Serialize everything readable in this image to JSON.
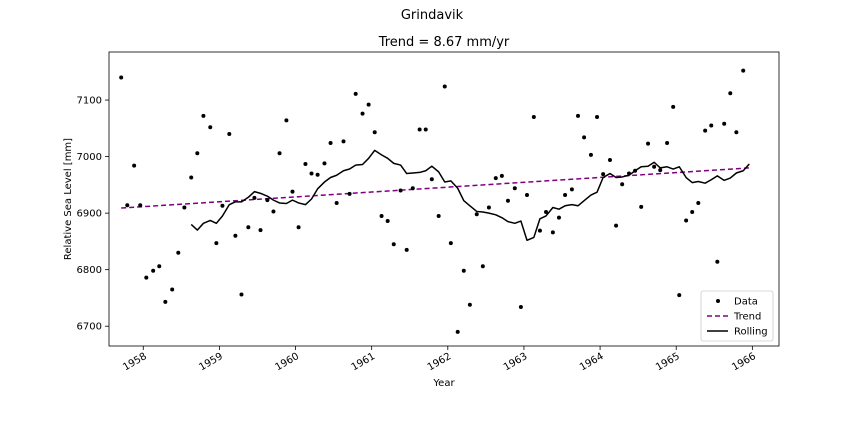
{
  "chart_data": {
    "type": "line",
    "suptitle": "Grindavik",
    "title": "Trend = 8.67 mm/yr",
    "xlabel": "Year",
    "ylabel": "Relative Sea Level [mm]",
    "xlim": [
      1957.55,
      1966.35
    ],
    "ylim": [
      6665,
      7185
    ],
    "xticks": [
      1958,
      1959,
      1960,
      1961,
      1962,
      1963,
      1964,
      1965,
      1966
    ],
    "yticks": [
      6700,
      6800,
      6900,
      7000,
      7100
    ],
    "grid": false,
    "legend": {
      "placement": "lower right",
      "entries": [
        "Data",
        "Trend",
        "Rolling"
      ]
    },
    "colors": {
      "data": "#000000",
      "trend": "#800080",
      "rolling": "#000000"
    },
    "series": [
      {
        "name": "Data",
        "style": "points",
        "x": [
          1957.71,
          1957.79,
          1957.88,
          1957.96,
          1958.04,
          1958.13,
          1958.21,
          1958.29,
          1958.38,
          1958.46,
          1958.54,
          1958.63,
          1958.71,
          1958.79,
          1958.88,
          1958.96,
          1959.04,
          1959.13,
          1959.21,
          1959.29,
          1959.38,
          1959.46,
          1959.54,
          1959.63,
          1959.71,
          1959.79,
          1959.88,
          1959.96,
          1960.04,
          1960.13,
          1960.21,
          1960.29,
          1960.38,
          1960.46,
          1960.54,
          1960.63,
          1960.71,
          1960.79,
          1960.88,
          1960.96,
          1961.04,
          1961.13,
          1961.21,
          1961.29,
          1961.38,
          1961.46,
          1961.54,
          1961.63,
          1961.71,
          1961.79,
          1961.88,
          1961.96,
          1962.04,
          1962.13,
          1962.21,
          1962.29,
          1962.38,
          1962.46,
          1962.54,
          1962.63,
          1962.71,
          1962.79,
          1962.88,
          1962.96,
          1963.04,
          1963.13,
          1963.21,
          1963.29,
          1963.38,
          1963.46,
          1963.54,
          1963.63,
          1963.71,
          1963.79,
          1963.88,
          1963.96,
          1964.04,
          1964.13,
          1964.21,
          1964.29,
          1964.38,
          1964.46,
          1964.54,
          1964.63,
          1964.71,
          1964.79,
          1964.88,
          1964.96,
          1965.04,
          1965.13,
          1965.21,
          1965.29,
          1965.38,
          1965.46,
          1965.54,
          1965.63,
          1965.71,
          1965.79,
          1965.88
        ],
        "y": [
          7140,
          6914,
          6984,
          6914,
          6786,
          6798,
          6806,
          6743,
          6765,
          6830,
          6910,
          6963,
          7006,
          7072,
          7052,
          6847,
          6913,
          7040,
          6860,
          6756,
          6875,
          6927,
          6870,
          6923,
          6903,
          7006,
          7064,
          6938,
          6875,
          6987,
          6970,
          6968,
          6988,
          7024,
          6918,
          7027,
          6934,
          7111,
          7076,
          7092,
          7043,
          6895,
          6886,
          6845,
          6940,
          6835,
          6944,
          7048,
          7048,
          6960,
          6895,
          7124,
          6847,
          6690,
          6798,
          6738,
          6898,
          6806,
          6910,
          6962,
          6966,
          6922,
          6944,
          6734,
          6932,
          7070,
          6869,
          6902,
          6866,
          6892,
          6932,
          6942,
          7072,
          7034,
          7003,
          7070,
          6969,
          6994,
          6878,
          6951,
          6970,
          6975,
          6911,
          7023,
          6982,
          6976,
          7024,
          7088,
          6755,
          6887,
          6902,
          6918,
          7046,
          7055,
          6814,
          7058,
          7112,
          7043,
          7152
        ]
      },
      {
        "name": "Trend",
        "style": "dashed",
        "x": [
          1957.71,
          1965.96
        ],
        "y": [
          6909,
          6980
        ]
      },
      {
        "name": "Rolling",
        "style": "solid",
        "x": [
          1958.63,
          1958.71,
          1958.79,
          1958.88,
          1958.96,
          1959.04,
          1959.13,
          1959.21,
          1959.29,
          1959.38,
          1959.46,
          1959.54,
          1959.63,
          1959.71,
          1959.79,
          1959.88,
          1959.96,
          1960.04,
          1960.13,
          1960.21,
          1960.29,
          1960.38,
          1960.46,
          1960.54,
          1960.63,
          1960.71,
          1960.79,
          1960.88,
          1960.96,
          1961.04,
          1961.13,
          1961.21,
          1961.29,
          1961.38,
          1961.46,
          1961.54,
          1961.63,
          1961.71,
          1961.79,
          1961.88,
          1961.96,
          1962.04,
          1962.13,
          1962.21,
          1962.29,
          1962.38,
          1962.46,
          1962.54,
          1962.63,
          1962.71,
          1962.79,
          1962.88,
          1962.96,
          1963.04,
          1963.13,
          1963.21,
          1963.29,
          1963.38,
          1963.46,
          1963.54,
          1963.63,
          1963.71,
          1963.79,
          1963.88,
          1963.96,
          1964.04,
          1964.13,
          1964.21,
          1964.29,
          1964.38,
          1964.46,
          1964.54,
          1964.63,
          1964.71,
          1964.79,
          1964.88,
          1964.96,
          1965.04,
          1965.13,
          1965.21,
          1965.29,
          1965.38,
          1965.46,
          1965.54,
          1965.63,
          1965.71,
          1965.79,
          1965.88,
          1965.96
        ],
        "y": [
          6880,
          6870,
          6882,
          6887,
          6882,
          6895,
          6915,
          6920,
          6920,
          6928,
          6938,
          6935,
          6930,
          6923,
          6918,
          6917,
          6923,
          6918,
          6915,
          6925,
          6943,
          6955,
          6963,
          6967,
          6975,
          6978,
          6985,
          6986,
          6997,
          7011,
          7003,
          6997,
          6988,
          6985,
          6970,
          6971,
          6972,
          6975,
          6983,
          6973,
          6955,
          6957,
          6944,
          6922,
          6913,
          6903,
          6902,
          6900,
          6897,
          6892,
          6885,
          6882,
          6886,
          6852,
          6857,
          6890,
          6895,
          6910,
          6907,
          6913,
          6915,
          6913,
          6922,
          6932,
          6937,
          6963,
          6970,
          6963,
          6964,
          6967,
          6975,
          6982,
          6983,
          6990,
          6980,
          6982,
          6978,
          6982,
          6963,
          6954,
          6956,
          6953,
          6959,
          6966,
          6958,
          6962,
          6971,
          6975,
          6987
        ]
      }
    ]
  }
}
